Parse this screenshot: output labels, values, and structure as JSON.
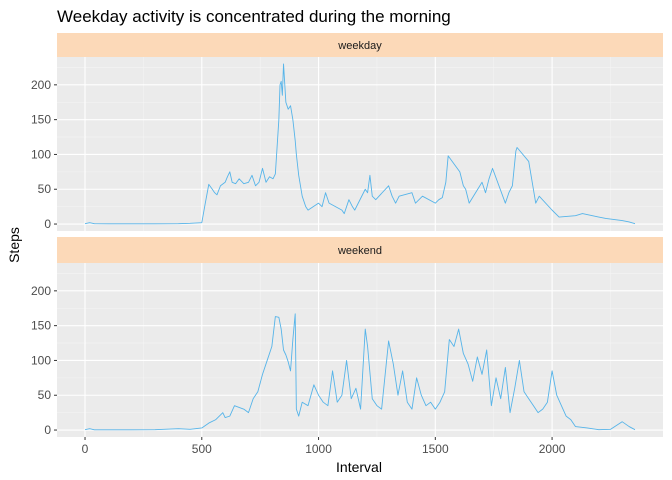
{
  "chart_data": {
    "type": "line",
    "title": "Weekday activity is concentrated during the morning",
    "xlabel": "Interval",
    "ylabel": "Steps",
    "xlim": [
      -120,
      2475
    ],
    "ylim": [
      -10,
      240
    ],
    "x_ticks": [
      0,
      500,
      1000,
      1500,
      2000
    ],
    "y_ticks": [
      0,
      50,
      100,
      150,
      200
    ],
    "line_color": "#56b4e9",
    "strip_color": "#fcd9b8",
    "panel_color": "#ebebeb",
    "grid": true,
    "facets": [
      {
        "label": "weekday",
        "x": [
          0,
          20,
          40,
          100,
          200,
          300,
          400,
          450,
          500,
          515,
          530,
          545,
          555,
          565,
          580,
          600,
          610,
          620,
          630,
          645,
          660,
          680,
          700,
          715,
          730,
          745,
          760,
          775,
          790,
          805,
          815,
          830,
          835,
          840,
          845,
          850,
          860,
          870,
          880,
          890,
          900,
          905,
          910,
          915,
          930,
          945,
          955,
          1000,
          1015,
          1030,
          1045,
          1100,
          1110,
          1130,
          1145,
          1155,
          1200,
          1210,
          1220,
          1230,
          1245,
          1300,
          1315,
          1330,
          1345,
          1400,
          1415,
          1430,
          1445,
          1500,
          1515,
          1530,
          1545,
          1555,
          1605,
          1620,
          1630,
          1645,
          1700,
          1715,
          1730,
          1745,
          1800,
          1815,
          1830,
          1845,
          1850,
          1900,
          1915,
          1930,
          1945,
          2000,
          2030,
          2100,
          2130,
          2200,
          2230,
          2300,
          2330,
          2355
        ],
        "values": [
          0.5,
          2,
          0.5,
          0.3,
          0.3,
          0.3,
          0.5,
          1,
          2,
          30,
          57,
          50,
          45,
          42,
          55,
          60,
          68,
          75,
          60,
          58,
          65,
          58,
          60,
          70,
          55,
          60,
          80,
          60,
          68,
          65,
          72,
          150,
          200,
          205,
          185,
          230,
          175,
          165,
          170,
          150,
          120,
          100,
          85,
          70,
          40,
          25,
          20,
          30,
          25,
          45,
          30,
          20,
          15,
          35,
          25,
          20,
          50,
          45,
          70,
          40,
          35,
          55,
          40,
          30,
          40,
          45,
          30,
          35,
          40,
          30,
          35,
          38,
          60,
          98,
          75,
          55,
          50,
          30,
          60,
          45,
          65,
          80,
          30,
          45,
          55,
          105,
          110,
          90,
          60,
          30,
          40,
          20,
          10,
          12,
          15,
          10,
          8,
          5,
          3,
          0.5
        ]
      },
      {
        "label": "weekend",
        "x": [
          0,
          20,
          40,
          100,
          200,
          300,
          400,
          450,
          500,
          530,
          560,
          590,
          600,
          620,
          640,
          680,
          700,
          720,
          740,
          760,
          780,
          800,
          815,
          830,
          840,
          845,
          850,
          860,
          870,
          880,
          890,
          900,
          905,
          915,
          930,
          955,
          980,
          1000,
          1020,
          1040,
          1060,
          1080,
          1100,
          1120,
          1140,
          1160,
          1180,
          1200,
          1210,
          1230,
          1250,
          1270,
          1300,
          1320,
          1340,
          1360,
          1380,
          1400,
          1420,
          1440,
          1460,
          1480,
          1500,
          1520,
          1540,
          1560,
          1580,
          1600,
          1620,
          1640,
          1660,
          1680,
          1700,
          1720,
          1740,
          1760,
          1780,
          1800,
          1820,
          1840,
          1860,
          1880,
          1900,
          1920,
          1940,
          1960,
          1980,
          2000,
          2020,
          2040,
          2060,
          2080,
          2100,
          2150,
          2200,
          2250,
          2300,
          2330,
          2355
        ],
        "values": [
          0.5,
          2,
          0.3,
          0.3,
          0.3,
          0.5,
          2,
          1,
          3,
          10,
          15,
          25,
          18,
          20,
          35,
          30,
          25,
          45,
          55,
          80,
          100,
          120,
          163,
          162,
          145,
          130,
          115,
          108,
          98,
          85,
          130,
          167,
          30,
          20,
          40,
          35,
          65,
          50,
          40,
          35,
          85,
          40,
          50,
          100,
          45,
          60,
          30,
          145,
          120,
          45,
          35,
          30,
          128,
          95,
          50,
          85,
          40,
          30,
          75,
          50,
          35,
          40,
          30,
          40,
          55,
          130,
          120,
          145,
          110,
          95,
          70,
          105,
          80,
          115,
          35,
          75,
          45,
          90,
          25,
          60,
          100,
          55,
          45,
          35,
          25,
          30,
          40,
          85,
          50,
          35,
          20,
          15,
          5,
          3,
          0.5,
          1,
          12,
          5,
          0.5
        ]
      }
    ]
  }
}
